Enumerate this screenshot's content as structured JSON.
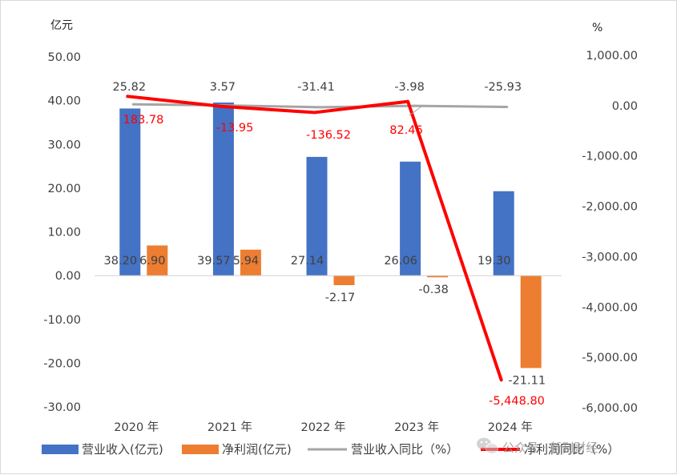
{
  "chart_data": {
    "type": "bar+line",
    "left_axis_unit": "亿元",
    "right_axis_unit": "%",
    "categories": [
      "2020 年",
      "2021 年",
      "2022 年",
      "2023 年",
      "2024 年"
    ],
    "left_ylim": [
      -30,
      50
    ],
    "left_ticks": [
      "50.00",
      "40.00",
      "30.00",
      "20.00",
      "10.00",
      "0.00",
      "-10.00",
      "-20.00",
      "-30.00"
    ],
    "right_ylim": [
      -6000,
      1000
    ],
    "right_ticks": [
      "1,000.00",
      "0.00",
      "-1,000.00",
      "-2,000.00",
      "-3,000.00",
      "-4,000.00",
      "-5,000.00",
      "-6,000.00"
    ],
    "grid": false,
    "legend_position": "bottom",
    "series": [
      {
        "name": "营业收入(亿元)",
        "kind": "bar",
        "axis": "left",
        "color": "#4472c4",
        "values": [
          38.2,
          39.57,
          27.14,
          26.06,
          19.3
        ],
        "labels": [
          "38.20",
          "39.57",
          "27.14",
          "26.06",
          "19.30"
        ]
      },
      {
        "name": "净利润(亿元)",
        "kind": "bar",
        "axis": "left",
        "color": "#ed7d31",
        "values": [
          6.9,
          5.94,
          -2.17,
          -0.38,
          -21.11
        ],
        "labels": [
          "6.90",
          "5.94",
          "-2.17",
          "-0.38",
          "-21.11"
        ]
      },
      {
        "name": "营业收入同比（%）",
        "kind": "line",
        "axis": "right",
        "color": "#a5a5a5",
        "values": [
          25.82,
          3.57,
          -31.41,
          -3.98,
          -25.93
        ],
        "labels": [
          "25.82",
          "3.57",
          "-31.41",
          "-3.98",
          "-25.93"
        ]
      },
      {
        "name": "净利润同比（%）",
        "kind": "line",
        "axis": "right",
        "color": "#ff0000",
        "values": [
          183.78,
          -13.95,
          -136.52,
          82.46,
          -5448.8
        ],
        "labels": [
          "183.78",
          "-13.95",
          "-136.52",
          "82.46",
          "-5,448.80"
        ]
      }
    ]
  },
  "watermark": {
    "text": "公众号 · 新刊财经",
    "icon": "wechat-icon"
  }
}
